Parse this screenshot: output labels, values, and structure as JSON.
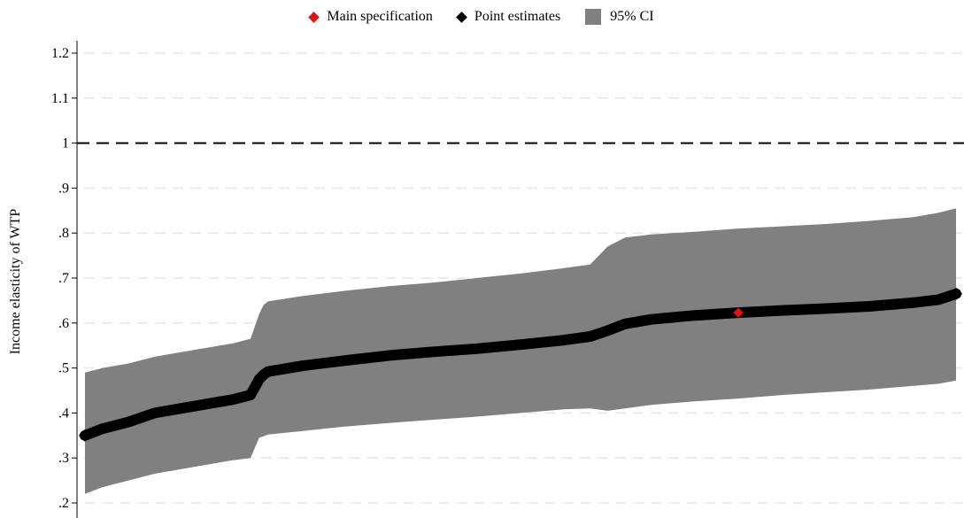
{
  "chart_data": {
    "type": "line",
    "ylabel": "Income elasticity of WTP",
    "xlabel": "",
    "ylim": [
      0.18,
      1.26
    ],
    "yticks": [
      0.2,
      0.3,
      0.4,
      0.5,
      0.6,
      0.7,
      0.8,
      0.9,
      1.0,
      1.1,
      1.2
    ],
    "ytick_labels": [
      ".2",
      ".3",
      ".4",
      ".5",
      ".6",
      ".7",
      ".8",
      ".9",
      "1",
      "1.1",
      "1.2"
    ],
    "reference_line": 1.0,
    "grid": "horizontal dashed",
    "legend": {
      "placement": "top-center",
      "entries": [
        {
          "label": "Main specification",
          "color": "#e8100f",
          "marker": "diamond"
        },
        {
          "label": "Point estimates",
          "color": "#000000",
          "marker": "diamond"
        },
        {
          "label": "95% CI",
          "color": "#808080",
          "marker": "square"
        }
      ]
    },
    "x_index": [
      0,
      0.02,
      0.05,
      0.08,
      0.11,
      0.14,
      0.17,
      0.19,
      0.2,
      0.205,
      0.21,
      0.25,
      0.3,
      0.35,
      0.4,
      0.45,
      0.5,
      0.55,
      0.58,
      0.6,
      0.62,
      0.65,
      0.7,
      0.75,
      0.8,
      0.85,
      0.9,
      0.95,
      0.98,
      1.0
    ],
    "point_estimates": [
      0.35,
      0.365,
      0.38,
      0.4,
      0.41,
      0.42,
      0.43,
      0.44,
      0.475,
      0.485,
      0.492,
      0.505,
      0.517,
      0.528,
      0.536,
      0.543,
      0.552,
      0.562,
      0.57,
      0.583,
      0.598,
      0.608,
      0.617,
      0.623,
      0.628,
      0.632,
      0.637,
      0.645,
      0.652,
      0.665
    ],
    "ci_lower": [
      0.22,
      0.235,
      0.25,
      0.265,
      0.275,
      0.285,
      0.295,
      0.3,
      0.345,
      0.348,
      0.352,
      0.36,
      0.37,
      0.378,
      0.385,
      0.392,
      0.4,
      0.408,
      0.41,
      0.405,
      0.41,
      0.418,
      0.426,
      0.432,
      0.44,
      0.446,
      0.452,
      0.46,
      0.465,
      0.472
    ],
    "ci_upper": [
      0.49,
      0.5,
      0.51,
      0.525,
      0.535,
      0.545,
      0.555,
      0.565,
      0.62,
      0.64,
      0.648,
      0.66,
      0.672,
      0.682,
      0.69,
      0.7,
      0.71,
      0.722,
      0.73,
      0.77,
      0.79,
      0.797,
      0.803,
      0.81,
      0.815,
      0.82,
      0.827,
      0.835,
      0.845,
      0.855
    ],
    "main_specification": {
      "x_index": 0.75,
      "value": 0.623
    }
  }
}
